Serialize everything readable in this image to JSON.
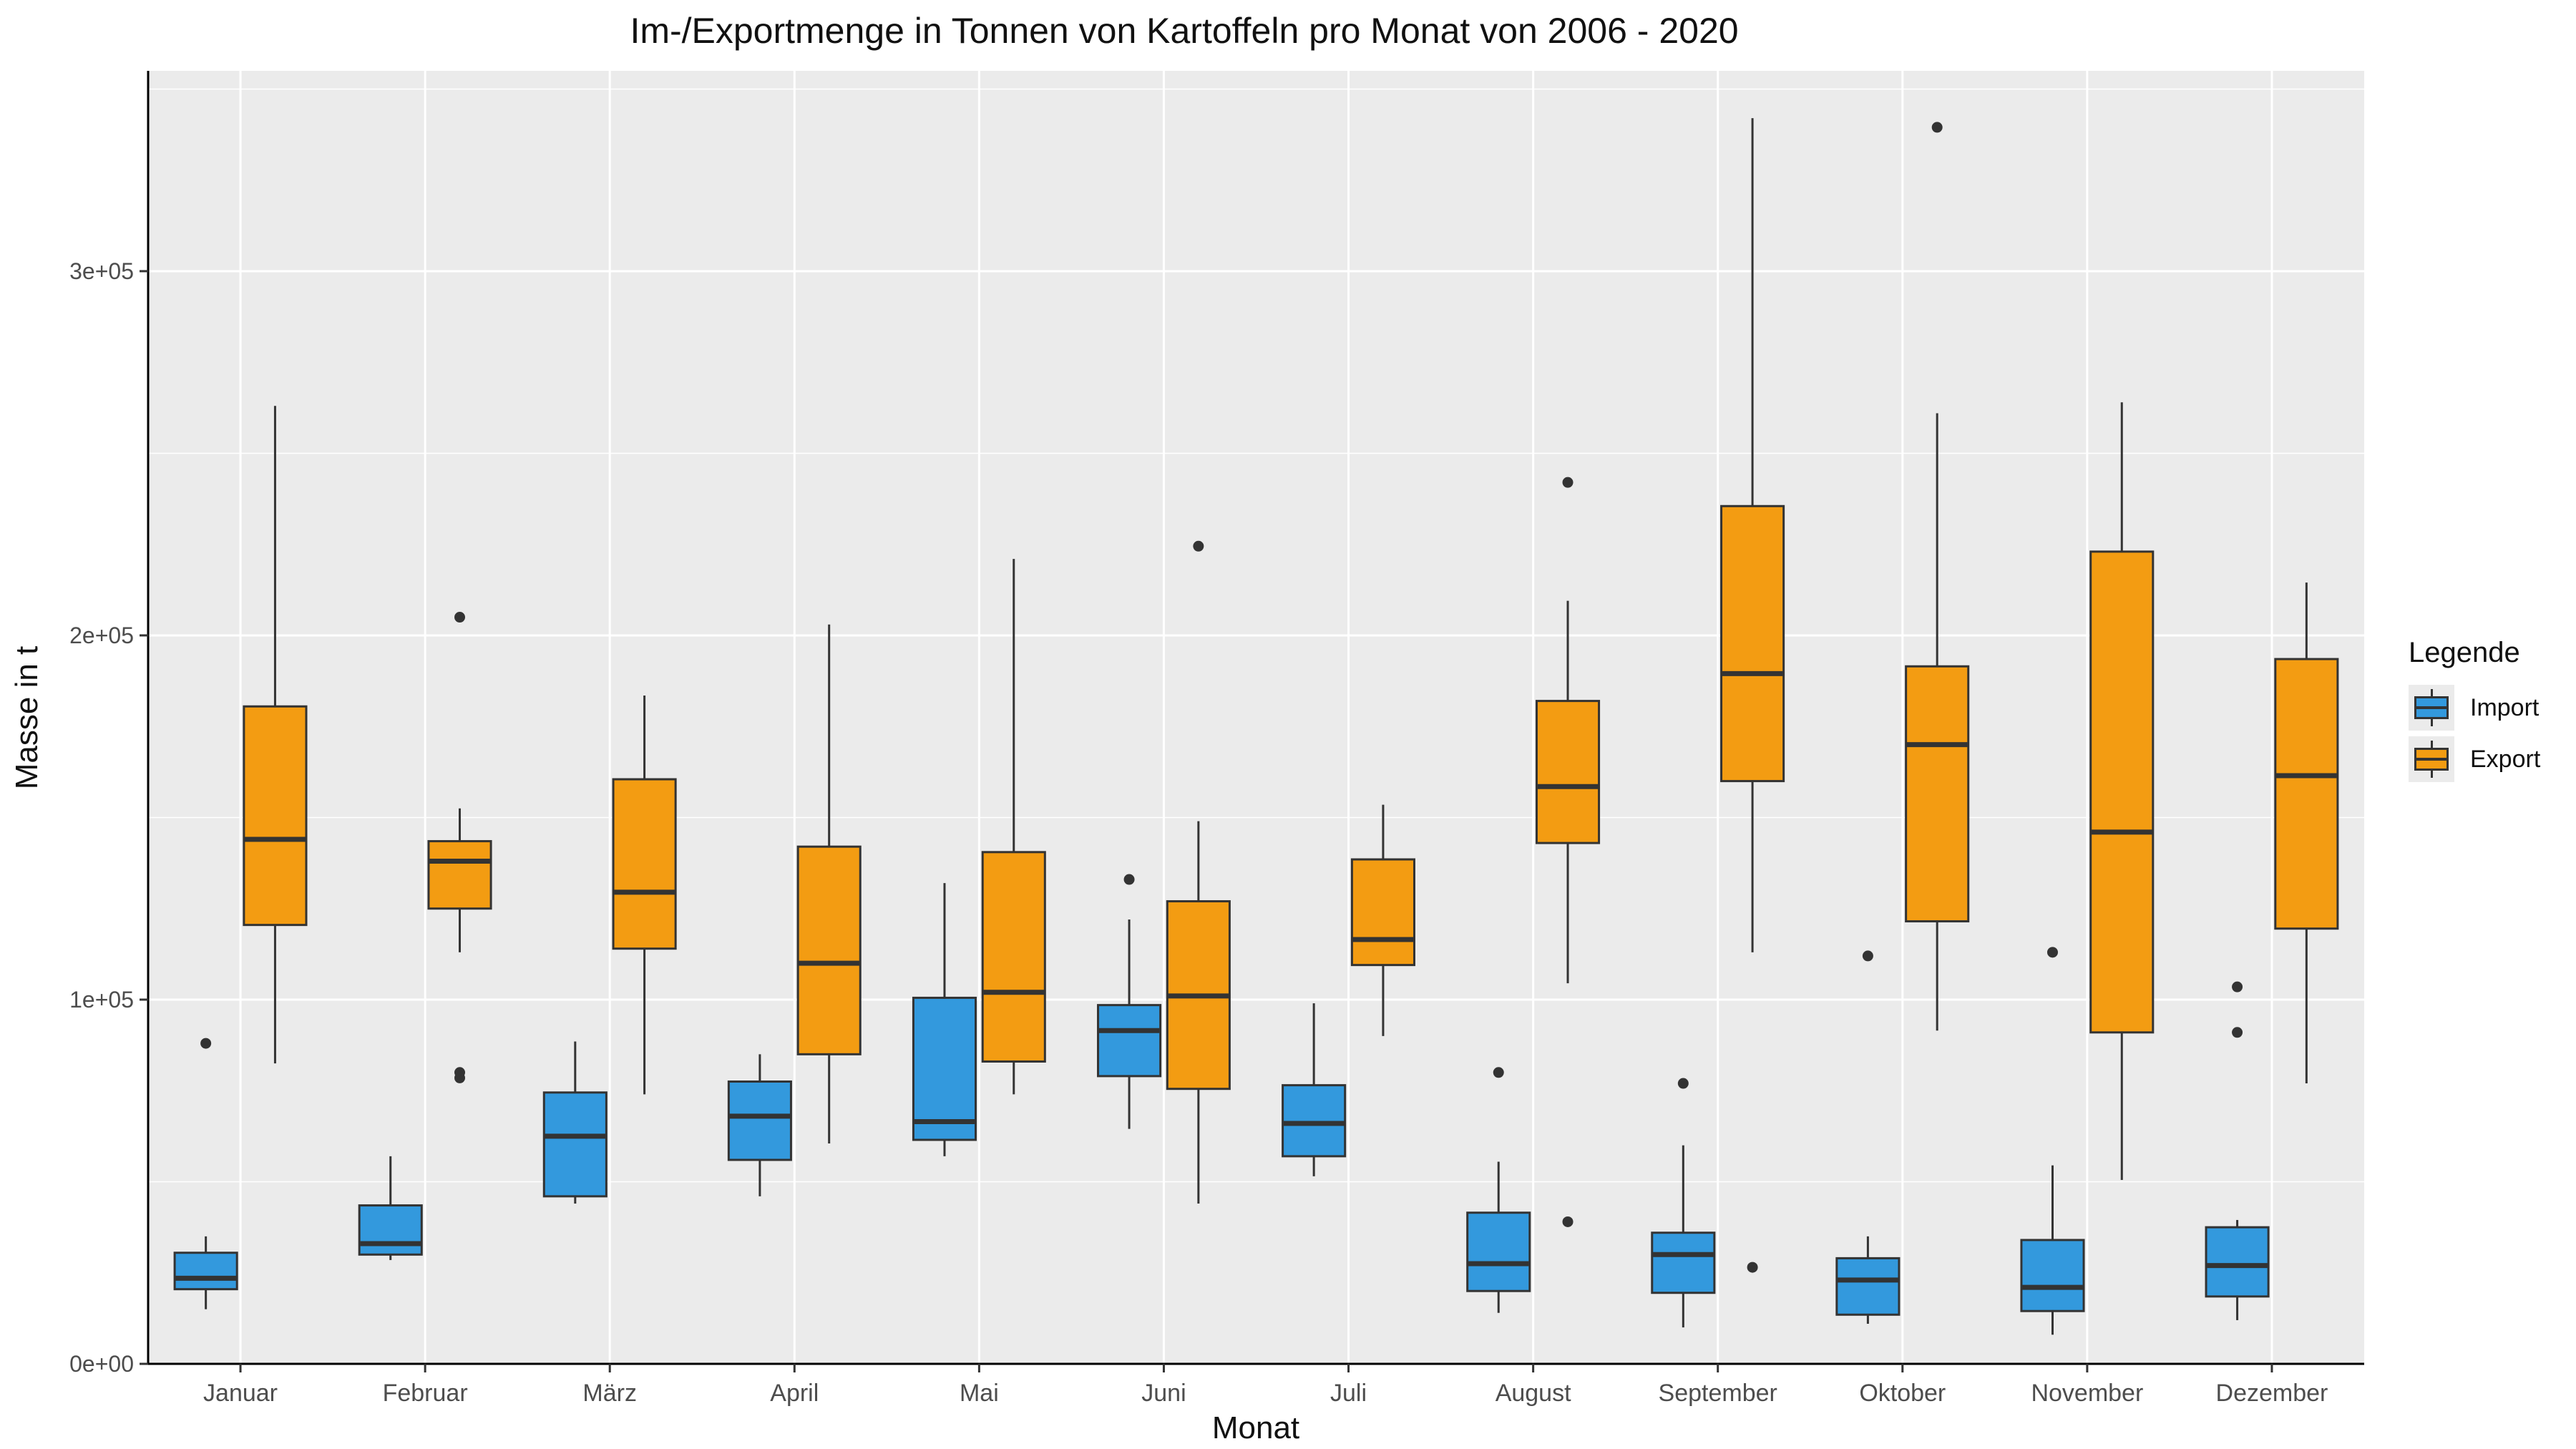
{
  "chart_data": {
    "type": "box",
    "title": "Im-/Exportmenge in Tonnen von Kartoffeln pro Monat von 2006 - 2020",
    "xlabel": "Monat",
    "ylabel": "Masse in t",
    "ylim": [
      0,
      355000
    ],
    "y_ticks": [
      0,
      100000,
      200000,
      300000
    ],
    "y_tick_labels": [
      "0e+00",
      "1e+05",
      "2e+05",
      "3e+05"
    ],
    "categories": [
      "Januar",
      "Februar",
      "März",
      "April",
      "Mai",
      "Juni",
      "Juli",
      "August",
      "September",
      "Oktober",
      "November",
      "Dezember"
    ],
    "grid": true,
    "legend": {
      "title": "Legende",
      "placement": "right"
    },
    "series": [
      {
        "name": "Import",
        "color": "#3399dd",
        "boxes": [
          {
            "min": 15000,
            "q1": 20500,
            "median": 23500,
            "q3": 30500,
            "max": 35000,
            "outliers": [
              88000
            ]
          },
          {
            "min": 28500,
            "q1": 30000,
            "median": 33000,
            "q3": 43500,
            "max": 57000,
            "outliers": []
          },
          {
            "min": 44000,
            "q1": 46000,
            "median": 62500,
            "q3": 74500,
            "max": 88500,
            "outliers": []
          },
          {
            "min": 46000,
            "q1": 56000,
            "median": 68000,
            "q3": 77500,
            "max": 85000,
            "outliers": []
          },
          {
            "min": 57000,
            "q1": 61500,
            "median": 66500,
            "q3": 100500,
            "max": 132000,
            "outliers": []
          },
          {
            "min": 64500,
            "q1": 79000,
            "median": 91500,
            "q3": 98500,
            "max": 122000,
            "outliers": [
              133000
            ]
          },
          {
            "min": 51500,
            "q1": 57000,
            "median": 66000,
            "q3": 76500,
            "max": 99000,
            "outliers": []
          },
          {
            "min": 14000,
            "q1": 20000,
            "median": 27500,
            "q3": 41500,
            "max": 55500,
            "outliers": [
              80000
            ]
          },
          {
            "min": 10000,
            "q1": 19500,
            "median": 30000,
            "q3": 36000,
            "max": 60000,
            "outliers": [
              77000
            ]
          },
          {
            "min": 11000,
            "q1": 13500,
            "median": 23000,
            "q3": 29000,
            "max": 35000,
            "outliers": [
              112000
            ]
          },
          {
            "min": 8000,
            "q1": 14500,
            "median": 21000,
            "q3": 34000,
            "max": 54500,
            "outliers": [
              113000
            ]
          },
          {
            "min": 12000,
            "q1": 18500,
            "median": 27000,
            "q3": 37500,
            "max": 39500,
            "outliers": [
              91000,
              103500
            ]
          }
        ]
      },
      {
        "name": "Export",
        "color": "#f39c12",
        "boxes": [
          {
            "min": 82500,
            "q1": 120500,
            "median": 144000,
            "q3": 180500,
            "max": 263000,
            "outliers": []
          },
          {
            "min": 113000,
            "q1": 125000,
            "median": 138000,
            "q3": 143500,
            "max": 152500,
            "outliers": [
              205000,
              80000,
              78500
            ]
          },
          {
            "min": 74000,
            "q1": 114000,
            "median": 129500,
            "q3": 160500,
            "max": 183500,
            "outliers": []
          },
          {
            "min": 60500,
            "q1": 85000,
            "median": 110000,
            "q3": 142000,
            "max": 203000,
            "outliers": []
          },
          {
            "min": 74000,
            "q1": 83000,
            "median": 102000,
            "q3": 140500,
            "max": 221000,
            "outliers": []
          },
          {
            "min": 44000,
            "q1": 75500,
            "median": 101000,
            "q3": 127000,
            "max": 149000,
            "outliers": [
              224500
            ]
          },
          {
            "min": 90000,
            "q1": 109500,
            "median": 116500,
            "q3": 138500,
            "max": 153500,
            "outliers": []
          },
          {
            "min": 104500,
            "q1": 143000,
            "median": 158500,
            "q3": 182000,
            "max": 209500,
            "outliers": [
              242000,
              39000
            ]
          },
          {
            "min": 113000,
            "q1": 160000,
            "median": 189500,
            "q3": 235500,
            "max": 342000,
            "outliers": [
              26500
            ]
          },
          {
            "min": 91500,
            "q1": 121500,
            "median": 170000,
            "q3": 191500,
            "max": 261000,
            "outliers": [
              339500
            ]
          },
          {
            "min": 50500,
            "q1": 91000,
            "median": 146000,
            "q3": 223000,
            "max": 264000,
            "outliers": []
          },
          {
            "min": 77000,
            "q1": 119500,
            "median": 161500,
            "q3": 193500,
            "max": 214500,
            "outliers": []
          }
        ]
      }
    ]
  }
}
